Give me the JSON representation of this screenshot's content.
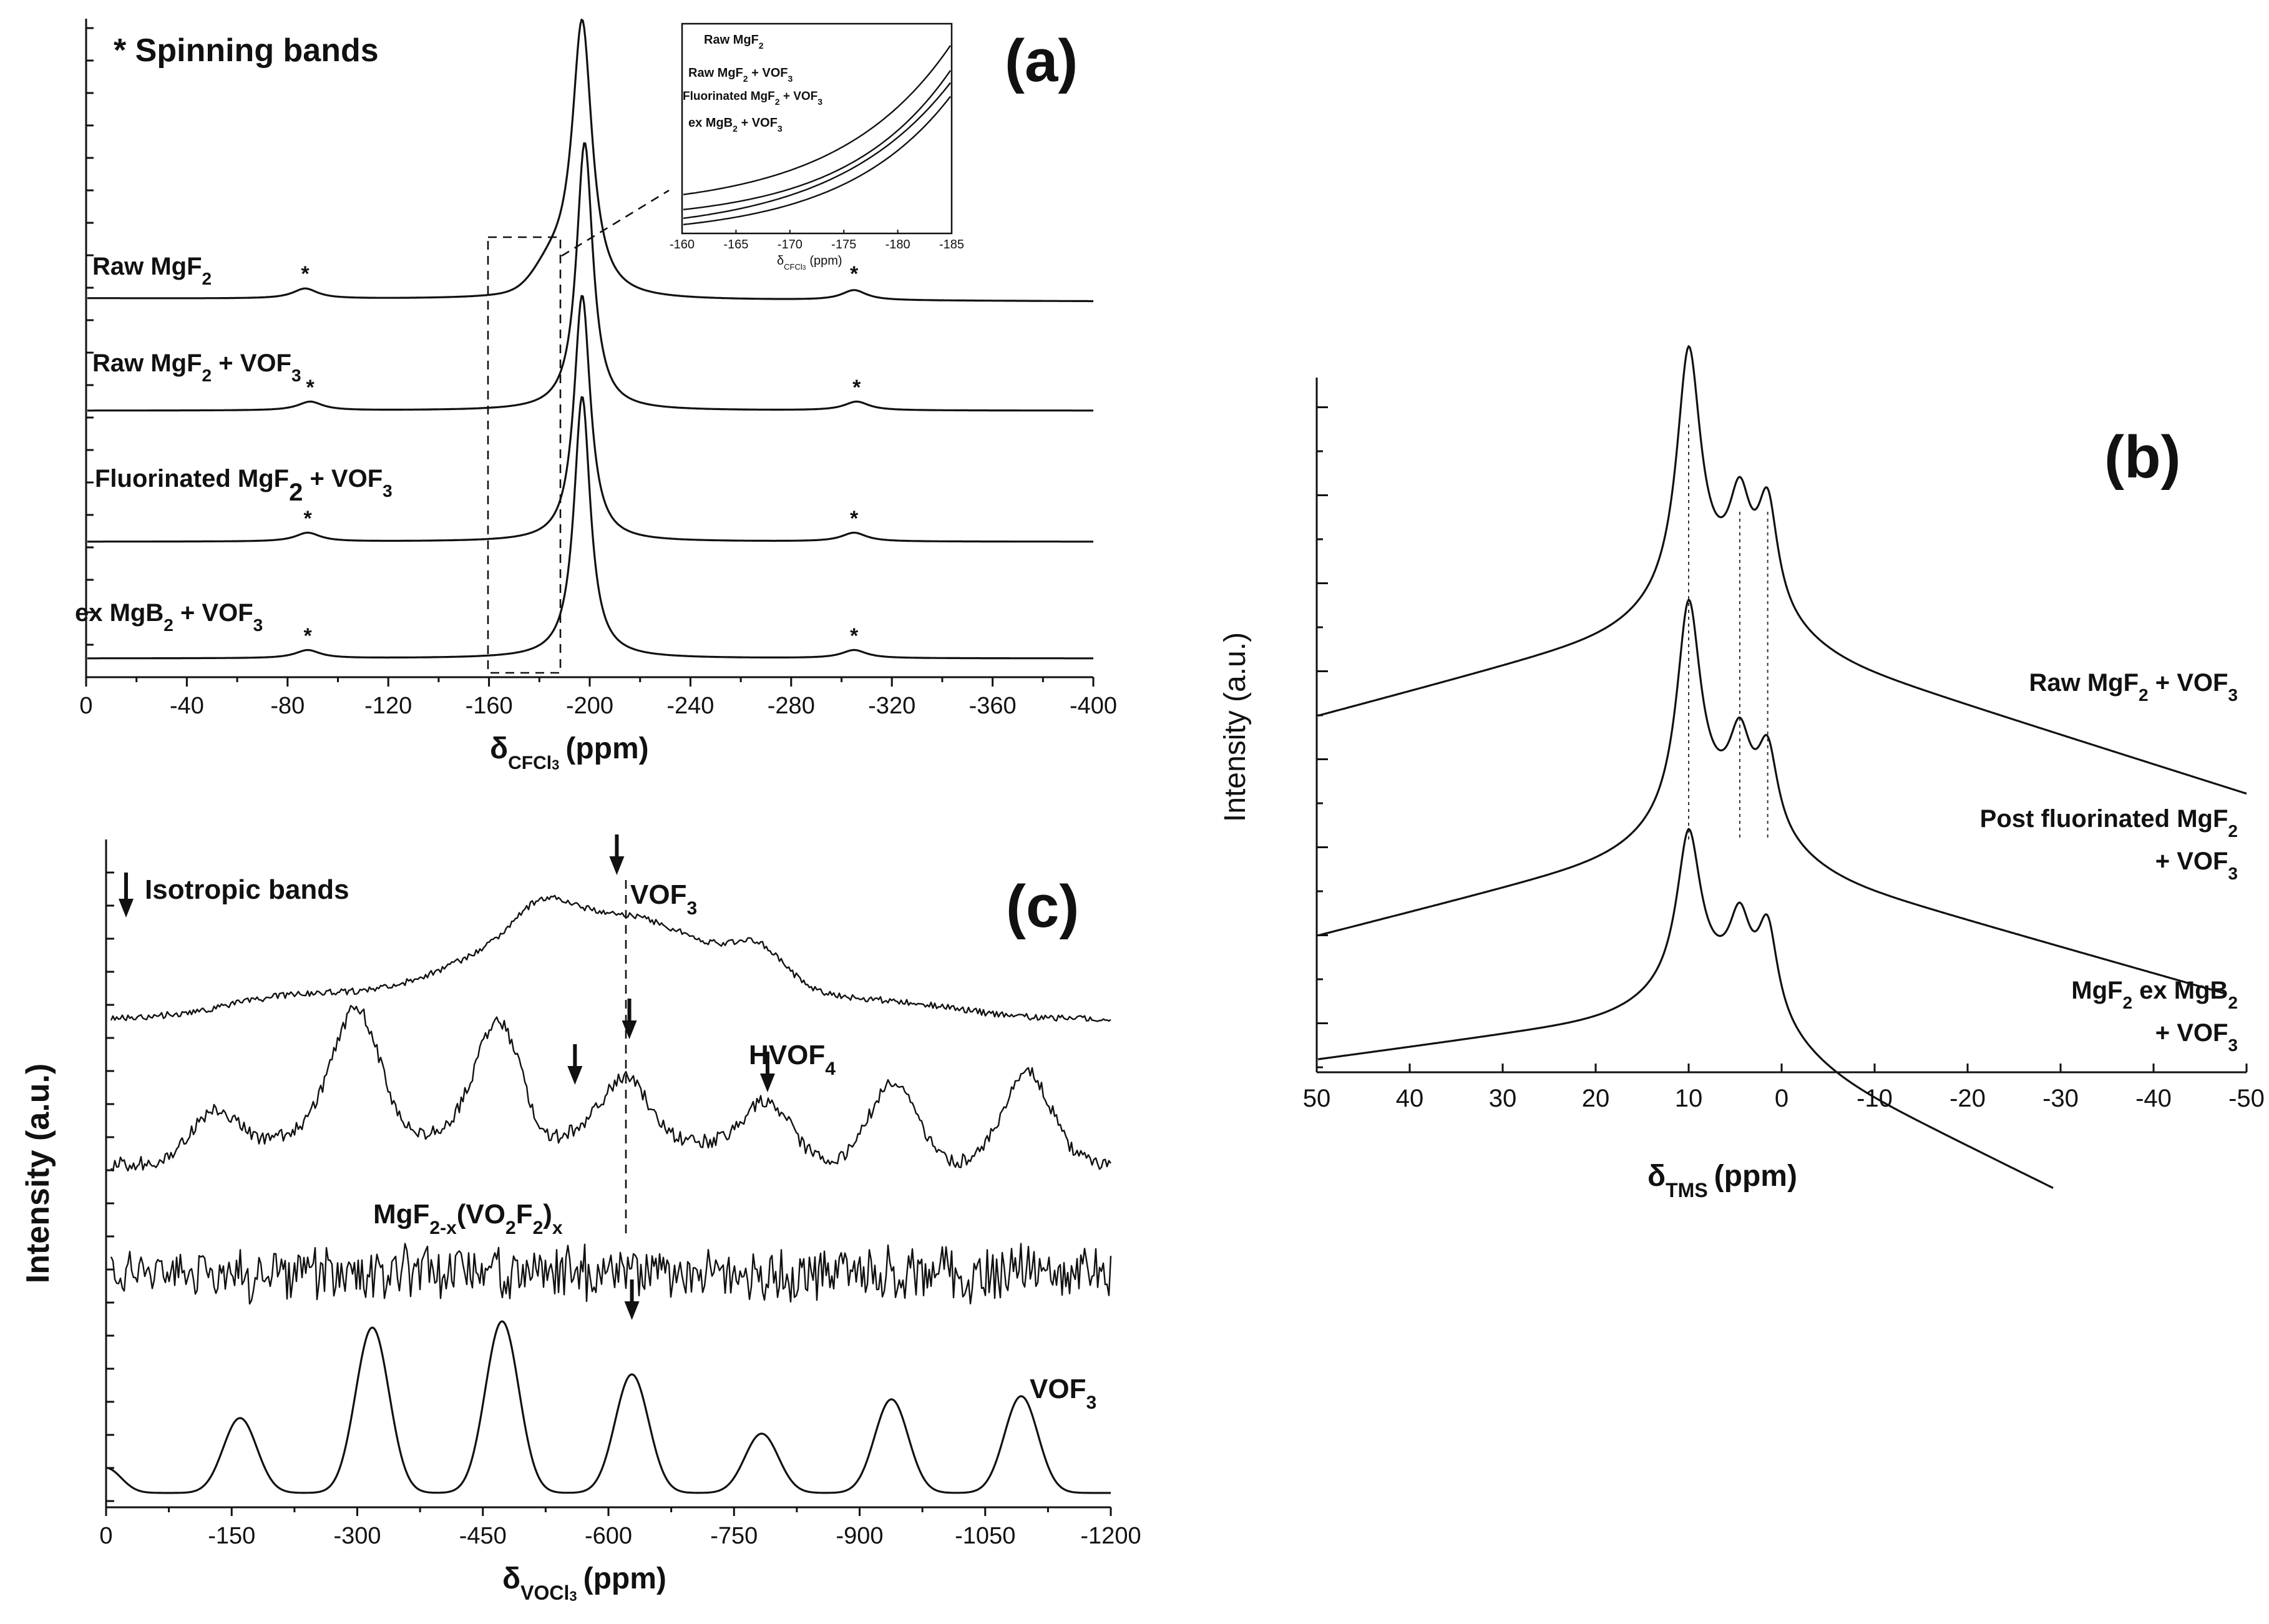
{
  "figure": {
    "background": "#ffffff",
    "ink": "#111111"
  },
  "chart_data": [
    {
      "panel": "(a)",
      "type": "line",
      "title": "",
      "xlabel_main": "δ",
      "xlabel_sub": "CFCl",
      "xlabel_sub2": "3",
      "xlabel_unit": "(ppm)",
      "xlim": [
        0,
        -400
      ],
      "xticks": [
        "0",
        "-40",
        "-80",
        "-120",
        "-160",
        "-200",
        "-240",
        "-280",
        "-320",
        "-360",
        "-400"
      ],
      "annotation": "*  Spinning bands",
      "dashed_box_range": [
        -160,
        -188
      ],
      "series": [
        {
          "name": "Raw MgF2",
          "label_pre": "Raw MgF",
          "label_sub": "2",
          "label_post": "",
          "peak_ppm": -197,
          "spinning_bands_ppm": [
            -87,
            -305
          ]
        },
        {
          "name": "Raw MgF2 + VOF3",
          "label_pre": "Raw MgF",
          "label_sub": "2",
          "label_post": " + VOF",
          "label_sub2": "3",
          "peak_ppm": -198,
          "spinning_bands_ppm": [
            -89,
            -306
          ]
        },
        {
          "name": "Fluorinated MgF2 + VOF3",
          "label_pre": "Fluorinated MgF",
          "label_sub": "2",
          "label_post": " + VOF",
          "label_sub2": "3",
          "peak_ppm": -197,
          "spinning_bands_ppm": [
            -88,
            -305
          ]
        },
        {
          "name": "ex MgB2 + VOF3",
          "label_pre": "ex MgB",
          "label_sub": "2",
          "label_post": " + VOF",
          "label_sub2": "3",
          "peak_ppm": -197,
          "spinning_bands_ppm": [
            -88,
            -305
          ]
        }
      ],
      "spinning_band_marker": "*",
      "inset": {
        "xlim": [
          -160,
          -185
        ],
        "xticks": [
          "-160",
          "-165",
          "-170",
          "-175",
          "-180",
          "-185"
        ],
        "xlabel_main": "δ",
        "xlabel_sub": "CFCl",
        "xlabel_sub2": "3",
        "xlabel_unit": "(ppm)",
        "legend": [
          {
            "pre": "Raw MgF",
            "sub": "2",
            "post": "",
            "sub2": ""
          },
          {
            "pre": "Raw MgF",
            "sub": "2",
            "post": " + VOF",
            "sub2": "3"
          },
          {
            "pre": "Fluorinated MgF",
            "sub": "2",
            "post": " + VOF",
            "sub2": "3"
          },
          {
            "pre": "ex MgB",
            "sub": "2",
            "post": " + VOF",
            "sub2": "3"
          }
        ]
      }
    },
    {
      "panel": "(b)",
      "type": "line",
      "title": "",
      "ylabel": "Intensity (a.u.)",
      "xlabel_main": "δ",
      "xlabel_sub": "TMS",
      "xlabel_unit": "(ppm)",
      "xlim": [
        50,
        -50
      ],
      "xticks": [
        "50",
        "40",
        "30",
        "20",
        "10",
        "0",
        "-10",
        "-20",
        "-30",
        "-40",
        "-50"
      ],
      "peak_lines_ppm": [
        10,
        4.5,
        1.5
      ],
      "series": [
        {
          "name": "Raw MgF2 + VOF3",
          "label_lines": [
            {
              "pre": "Raw MgF",
              "sub": "2",
              "post": " + VOF",
              "sub2": "3"
            }
          ],
          "peaks_ppm": [
            10,
            4.5,
            1.5
          ]
        },
        {
          "name": "Post fluorinated MgF2 + VOF3",
          "label_lines": [
            {
              "pre": "Post fluorinated MgF",
              "sub": "2",
              "post": "",
              "sub2": ""
            },
            {
              "pre": "+ VOF",
              "sub": "3",
              "post": "",
              "sub2": ""
            }
          ],
          "peaks_ppm": [
            10,
            4.5,
            1.5
          ]
        },
        {
          "name": "MgF2 ex MgB2 + VOF3",
          "label_lines": [
            {
              "pre": "MgF",
              "sub": "2",
              "post": " ex MgB",
              "sub2": "2"
            },
            {
              "pre": "+ VOF",
              "sub": "3",
              "post": "",
              "sub2": ""
            }
          ],
          "peaks_ppm": [
            10,
            4.5,
            1.5
          ]
        }
      ]
    },
    {
      "panel": "(c)",
      "type": "line",
      "title": "",
      "ylabel": "Intensity (a.u.)",
      "xlabel_main": "δ",
      "xlabel_sub": "VOCl",
      "xlabel_sub2": "3",
      "xlabel_unit": "(ppm)",
      "xlim": [
        0,
        -1200
      ],
      "xticks": [
        "0",
        "-150",
        "-300",
        "-450",
        "-600",
        "-750",
        "-900",
        "-1050",
        "-1200"
      ],
      "legend_note": "Isotropic bands",
      "series": [
        {
          "name": "VOF3 (top)",
          "label_pre": "VOF",
          "label_sub": "3",
          "isotropic_ppm": -610
        },
        {
          "name": "HVOF4",
          "label_pre": "HVOF",
          "label_sub": "4",
          "isotropic_ppm": [
            -560,
            -625,
            -790
          ]
        },
        {
          "name": "MgF2-x(VO2F2)x",
          "label_pre": "MgF",
          "label_sub": "2-x",
          "label_mid": "(VO",
          "label_sub2": "2",
          "label_mid2": "F",
          "label_sub3": "2",
          "label_post": ")",
          "label_sub4": "x"
        },
        {
          "name": "VOF3 (bottom)",
          "label_pre": "VOF",
          "label_sub": "3",
          "isotropic_ppm": -628,
          "band_centres_ppm": [
            -160,
            -318,
            -473,
            -628,
            -783,
            -938,
            -1093
          ]
        }
      ]
    }
  ]
}
